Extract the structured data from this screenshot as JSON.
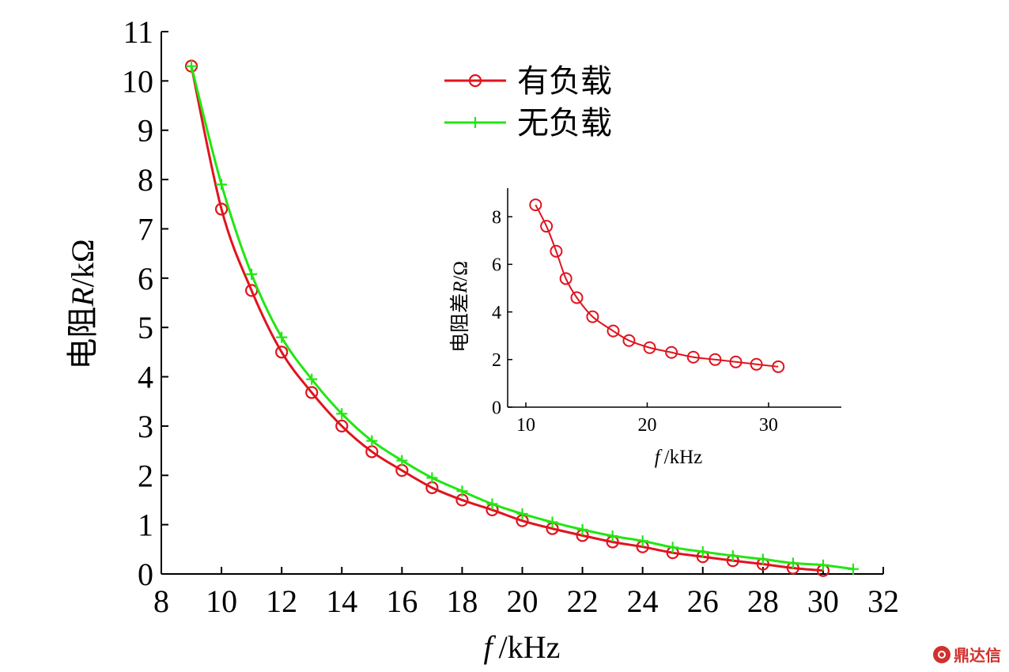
{
  "chart_data": [
    {
      "type": "line",
      "title": "",
      "xlabel_italic": "f",
      "xlabel_unit": "/kHz",
      "ylabel_text": "电阻",
      "ylabel_italic": "R",
      "ylabel_unit": "/kΩ",
      "xlim": [
        8,
        32
      ],
      "ylim": [
        0,
        11
      ],
      "xticks": [
        8,
        10,
        12,
        14,
        16,
        18,
        20,
        22,
        24,
        26,
        28,
        30,
        32
      ],
      "yticks": [
        0,
        1,
        2,
        3,
        4,
        5,
        6,
        7,
        8,
        9,
        10,
        11
      ],
      "legend": "top-center",
      "grid": false,
      "series": [
        {
          "name": "有负载",
          "color": "#e0141e",
          "marker": "circle",
          "x": [
            9,
            10,
            11,
            12,
            13,
            14,
            15,
            16,
            17,
            18,
            19,
            20,
            21,
            22,
            23,
            24,
            25,
            26,
            27,
            28,
            29,
            30
          ],
          "y": [
            10.3,
            7.4,
            5.75,
            4.5,
            3.68,
            3.0,
            2.48,
            2.1,
            1.75,
            1.5,
            1.3,
            1.08,
            0.92,
            0.78,
            0.65,
            0.55,
            0.43,
            0.35,
            0.27,
            0.2,
            0.12,
            0.07
          ]
        },
        {
          "name": "无负载",
          "color": "#22e612",
          "marker": "plus",
          "x": [
            9,
            10,
            11,
            12,
            13,
            14,
            15,
            16,
            17,
            18,
            19,
            20,
            21,
            22,
            23,
            24,
            25,
            26,
            27,
            28,
            29,
            30,
            31
          ],
          "y": [
            10.3,
            7.9,
            6.08,
            4.8,
            3.95,
            3.25,
            2.7,
            2.3,
            1.95,
            1.68,
            1.42,
            1.22,
            1.05,
            0.9,
            0.77,
            0.67,
            0.54,
            0.45,
            0.37,
            0.3,
            0.22,
            0.18,
            0.1
          ]
        }
      ]
    },
    {
      "type": "line",
      "title": "",
      "xlabel_italic": "f",
      "xlabel_unit": "/kHz",
      "ylabel_text": "电阻差",
      "ylabel_italic": "R",
      "ylabel_unit": "/Ω",
      "xlim": [
        8.5,
        36
      ],
      "ylim": [
        0,
        9.2
      ],
      "xticks": [
        10,
        20,
        30
      ],
      "yticks": [
        0,
        2,
        4,
        6,
        8
      ],
      "grid": false,
      "series": [
        {
          "color": "#e0141e",
          "marker": "circle",
          "x": [
            10.8,
            11.7,
            12.5,
            13.3,
            14.2,
            15.5,
            17.2,
            18.5,
            20.2,
            22.0,
            23.8,
            25.6,
            27.3,
            29.0,
            30.8
          ],
          "y": [
            8.5,
            7.6,
            6.55,
            5.4,
            4.6,
            3.8,
            3.2,
            2.8,
            2.5,
            2.3,
            2.1,
            2.0,
            1.9,
            1.8,
            1.7
          ]
        }
      ]
    }
  ],
  "watermark": "鼎达信"
}
